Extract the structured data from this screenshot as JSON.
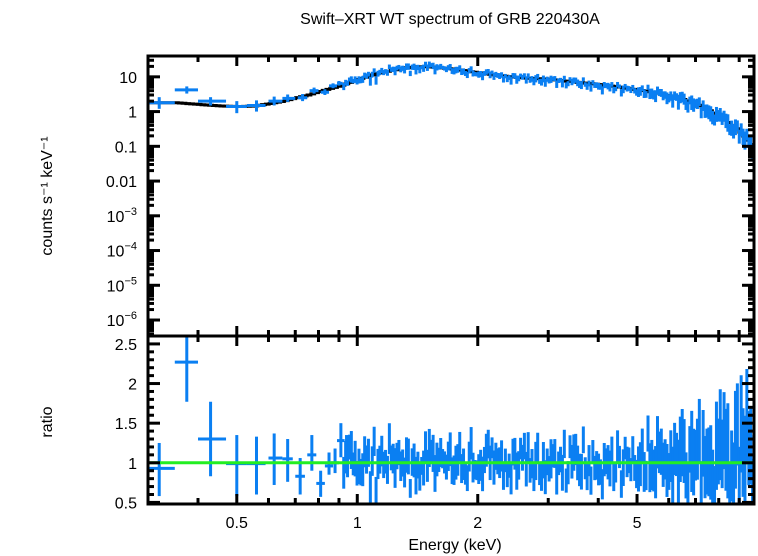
{
  "chart_data": {
    "type": "scatter",
    "title": "Swift–XRT WT spectrum of GRB 220430A",
    "xlabel": "Energy (keV)",
    "x_scale": "log",
    "xlim": [
      0.3,
      9.8
    ],
    "x_ticks": [
      {
        "value": 0.5,
        "label": "0.5"
      },
      {
        "value": 1,
        "label": "1"
      },
      {
        "value": 2,
        "label": "2"
      },
      {
        "value": 5,
        "label": "5"
      }
    ],
    "colors": {
      "data": "#0a7ff2",
      "model": "#000000",
      "unity": "#22ee22",
      "frame": "#000000"
    },
    "panels": [
      {
        "name": "spectrum",
        "ylabel": "counts s⁻¹ keV⁻¹",
        "y_scale": "log",
        "ylim_log10": [
          -6.46,
          1.6
        ],
        "y_ticks": [
          {
            "log10": 1,
            "label": "10"
          },
          {
            "log10": 0,
            "label": "1"
          },
          {
            "log10": -1,
            "label": "0.1"
          },
          {
            "log10": -2,
            "label": "0.01"
          },
          {
            "log10": -3,
            "label": "10",
            "sup": "−3"
          },
          {
            "log10": -4,
            "label": "10",
            "sup": "−4"
          },
          {
            "log10": -5,
            "label": "10",
            "sup": "−5"
          },
          {
            "log10": -6,
            "label": "10",
            "sup": "−6"
          }
        ],
        "model": {
          "name": "model",
          "x": [
            0.3,
            0.35,
            0.4,
            0.45,
            0.5,
            0.55,
            0.6,
            0.65,
            0.7,
            0.75,
            0.8,
            0.85,
            0.9,
            1.0,
            1.1,
            1.2,
            1.3,
            1.4,
            1.5,
            1.7,
            2.0,
            2.3,
            2.6,
            3.0,
            3.5,
            4.0,
            4.5,
            5.0,
            5.5,
            6.0,
            6.5,
            7.0,
            7.5,
            8.0,
            8.5,
            9.0,
            9.5,
            9.8
          ],
          "y": [
            1.8,
            1.8,
            1.6,
            1.45,
            1.4,
            1.45,
            1.7,
            2.0,
            2.5,
            3.0,
            3.8,
            4.6,
            5.5,
            8.5,
            12,
            15,
            18,
            19.5,
            19.5,
            17,
            13,
            10.5,
            9.2,
            8.5,
            7.0,
            6.0,
            5.0,
            4.2,
            3.5,
            2.8,
            2.2,
            1.6,
            1.1,
            0.7,
            0.45,
            0.25,
            0.13,
            0.08
          ]
        },
        "points": [
          {
            "x": 0.32,
            "xlo": 0.3,
            "xhi": 0.35,
            "y": 1.8,
            "ylo": 1.2,
            "yhi": 2.6
          },
          {
            "x": 0.375,
            "xlo": 0.35,
            "xhi": 0.4,
            "y": 4.2,
            "ylo": 3.3,
            "yhi": 5.3
          },
          {
            "x": 0.43,
            "xlo": 0.4,
            "xhi": 0.47,
            "y": 2.0,
            "ylo": 1.5,
            "yhi": 2.6
          },
          {
            "x": 0.5,
            "xlo": 0.47,
            "xhi": 0.53,
            "y": 1.4,
            "ylo": 0.9,
            "yhi": 2.0
          },
          {
            "x": 0.56,
            "xlo": 0.53,
            "xhi": 0.59,
            "y": 1.5,
            "ylo": 1.0,
            "yhi": 2.1
          },
          {
            "x": 0.62,
            "xlo": 0.6,
            "xhi": 0.65,
            "y": 2.0,
            "ylo": 1.5,
            "yhi": 2.7
          },
          {
            "x": 0.67,
            "xlo": 0.65,
            "xhi": 0.7,
            "y": 2.4,
            "ylo": 1.9,
            "yhi": 3.1
          },
          {
            "x": 0.73,
            "xlo": 0.71,
            "xhi": 0.75,
            "y": 2.5,
            "ylo": 2.0,
            "yhi": 3.2
          },
          {
            "x": 0.78,
            "xlo": 0.76,
            "xhi": 0.8,
            "y": 4.0,
            "ylo": 3.3,
            "yhi": 4.9
          },
          {
            "x": 0.83,
            "xlo": 0.81,
            "xhi": 0.85,
            "y": 3.6,
            "ylo": 3.0,
            "yhi": 4.4
          },
          {
            "x": 0.87,
            "xlo": 0.85,
            "xhi": 0.89,
            "y": 5.5,
            "ylo": 4.7,
            "yhi": 6.5
          },
          {
            "x": 0.9,
            "xlo": 0.89,
            "xhi": 0.92,
            "y": 6.5,
            "ylo": 5.6,
            "yhi": 7.6
          }
        ],
        "dense_band": {
          "description": "many narrow bins from ~0.92 to 9.8 keV scattered around the model",
          "x_range": [
            0.92,
            9.8
          ]
        }
      },
      {
        "name": "ratio",
        "ylabel": "ratio",
        "y_scale": "linear",
        "ylim": [
          0.48,
          2.6
        ],
        "y_ticks": [
          {
            "value": 0.5,
            "label": "0.5"
          },
          {
            "value": 1,
            "label": "1"
          },
          {
            "value": 1.5,
            "label": "1.5"
          },
          {
            "value": 2,
            "label": "2"
          },
          {
            "value": 2.5,
            "label": "2.5"
          }
        ],
        "unity_line": 1,
        "points": [
          {
            "x": 0.32,
            "xlo": 0.3,
            "xhi": 0.35,
            "y": 0.93,
            "ylo": 0.58,
            "yhi": 1.25
          },
          {
            "x": 0.375,
            "xlo": 0.35,
            "xhi": 0.4,
            "y": 2.27,
            "ylo": 1.77,
            "yhi": 2.6
          },
          {
            "x": 0.43,
            "xlo": 0.4,
            "xhi": 0.47,
            "y": 1.3,
            "ylo": 0.83,
            "yhi": 1.77
          },
          {
            "x": 0.5,
            "xlo": 0.47,
            "xhi": 0.53,
            "y": 0.99,
            "ylo": 0.58,
            "yhi": 1.35
          },
          {
            "x": 0.56,
            "xlo": 0.53,
            "xhi": 0.59,
            "y": 0.99,
            "ylo": 0.6,
            "yhi": 1.33
          },
          {
            "x": 0.62,
            "xlo": 0.6,
            "xhi": 0.65,
            "y": 1.06,
            "ylo": 0.72,
            "yhi": 1.37
          },
          {
            "x": 0.67,
            "xlo": 0.65,
            "xhi": 0.69,
            "y": 1.05,
            "ylo": 0.76,
            "yhi": 1.3
          },
          {
            "x": 0.72,
            "xlo": 0.7,
            "xhi": 0.74,
            "y": 0.83,
            "ylo": 0.6,
            "yhi": 1.06
          },
          {
            "x": 0.77,
            "xlo": 0.75,
            "xhi": 0.79,
            "y": 1.1,
            "ylo": 0.9,
            "yhi": 1.35
          },
          {
            "x": 0.81,
            "xlo": 0.79,
            "xhi": 0.83,
            "y": 0.74,
            "ylo": 0.57,
            "yhi": 0.9
          },
          {
            "x": 0.85,
            "xlo": 0.83,
            "xhi": 0.87,
            "y": 0.96,
            "ylo": 0.85,
            "yhi": 1.13
          },
          {
            "x": 0.88,
            "xlo": 0.86,
            "xhi": 0.9,
            "y": 1.0,
            "ylo": 0.87,
            "yhi": 1.18
          },
          {
            "x": 0.91,
            "xlo": 0.89,
            "xhi": 0.93,
            "y": 1.28,
            "ylo": 1.07,
            "yhi": 1.5
          },
          {
            "x": 0.94,
            "xlo": 0.93,
            "xhi": 0.95,
            "y": 1.17,
            "ylo": 1.0,
            "yhi": 1.35
          }
        ],
        "dense_band": {
          "description": "many narrow bins from ~0.95 to 9.8 keV scattered around 1; scatter widens above ~5 keV with values up to ~2.6",
          "x_range": [
            0.95,
            9.8
          ]
        }
      }
    ]
  }
}
